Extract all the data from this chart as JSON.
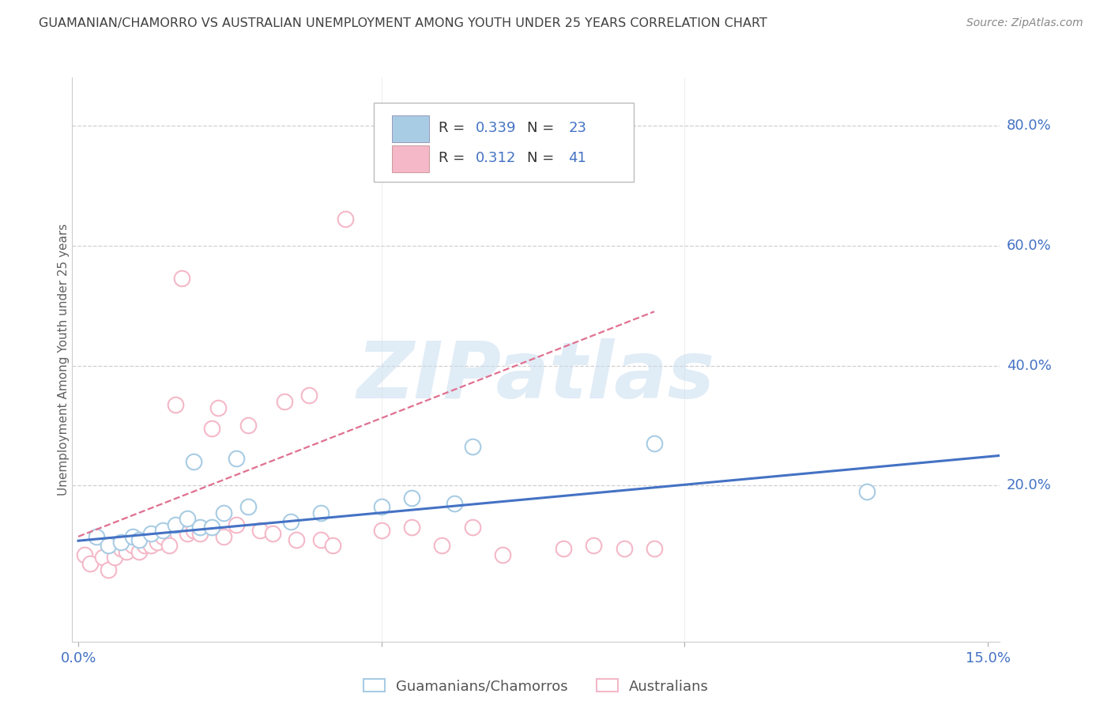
{
  "title": "GUAMANIAN/CHAMORRO VS AUSTRALIAN UNEMPLOYMENT AMONG YOUTH UNDER 25 YEARS CORRELATION CHART",
  "source": "Source: ZipAtlas.com",
  "ylabel": "Unemployment Among Youth under 25 years",
  "xlim": [
    -0.001,
    0.152
  ],
  "ylim": [
    -0.06,
    0.88
  ],
  "ytick_positions": [
    0.2,
    0.4,
    0.6,
    0.8
  ],
  "ytick_labels": [
    "20.0%",
    "40.0%",
    "60.0%",
    "80.0%"
  ],
  "blue_color": "#a8cce4",
  "pink_color": "#f4b8c8",
  "blue_edge_color": "#a8cce4",
  "pink_edge_color": "#f4b8c8",
  "blue_line_color": "#4472c4",
  "pink_line_color": "#e07090",
  "tick_color": "#4472c4",
  "legend_text_color": "#4472c4",
  "legend_R_blue": "0.339",
  "legend_N_blue": "23",
  "legend_R_pink": "0.312",
  "legend_N_pink": "41",
  "legend_label_blue": "Guamanians/Chamorros",
  "legend_label_pink": "Australians",
  "watermark": "ZIPatlas",
  "blue_scatter_x": [
    0.003,
    0.005,
    0.007,
    0.009,
    0.01,
    0.012,
    0.014,
    0.016,
    0.018,
    0.019,
    0.02,
    0.022,
    0.024,
    0.026,
    0.028,
    0.035,
    0.04,
    0.05,
    0.055,
    0.062,
    0.065,
    0.095,
    0.13
  ],
  "blue_scatter_y": [
    0.115,
    0.1,
    0.105,
    0.115,
    0.11,
    0.12,
    0.125,
    0.135,
    0.145,
    0.24,
    0.13,
    0.13,
    0.155,
    0.245,
    0.165,
    0.14,
    0.155,
    0.165,
    0.18,
    0.17,
    0.265,
    0.27,
    0.19
  ],
  "pink_scatter_x": [
    0.001,
    0.002,
    0.004,
    0.005,
    0.006,
    0.007,
    0.008,
    0.009,
    0.01,
    0.011,
    0.012,
    0.013,
    0.014,
    0.015,
    0.016,
    0.017,
    0.018,
    0.019,
    0.02,
    0.022,
    0.023,
    0.024,
    0.026,
    0.028,
    0.03,
    0.032,
    0.034,
    0.036,
    0.038,
    0.04,
    0.042,
    0.044,
    0.05,
    0.055,
    0.06,
    0.065,
    0.07,
    0.08,
    0.085,
    0.09,
    0.095
  ],
  "pink_scatter_y": [
    0.085,
    0.07,
    0.08,
    0.06,
    0.08,
    0.095,
    0.09,
    0.1,
    0.09,
    0.1,
    0.1,
    0.105,
    0.115,
    0.1,
    0.335,
    0.545,
    0.12,
    0.125,
    0.12,
    0.295,
    0.33,
    0.115,
    0.135,
    0.3,
    0.125,
    0.12,
    0.34,
    0.11,
    0.35,
    0.11,
    0.1,
    0.645,
    0.125,
    0.13,
    0.1,
    0.13,
    0.085,
    0.095,
    0.1,
    0.095,
    0.095
  ],
  "blue_trend_x": [
    0.0,
    0.152
  ],
  "blue_trend_y": [
    0.108,
    0.25
  ],
  "pink_trend_x": [
    0.0,
    0.095
  ],
  "pink_trend_y": [
    0.115,
    0.49
  ],
  "background_color": "#ffffff",
  "grid_color": "#d0d0d0",
  "title_color": "#404040",
  "axis_label_color": "#606060"
}
